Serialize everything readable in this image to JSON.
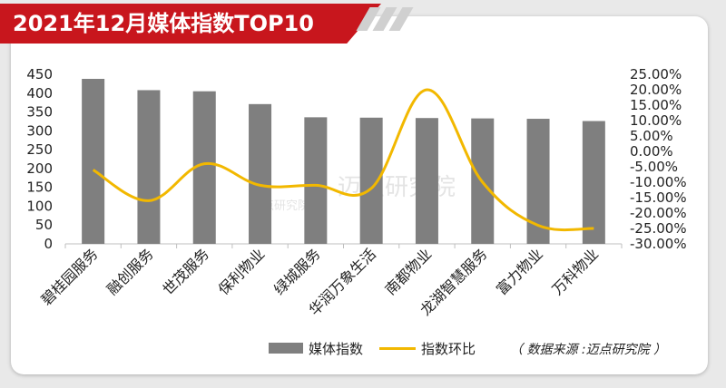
{
  "header": {
    "title": "2021年12月媒体指数TOP10"
  },
  "watermark": {
    "text": "迈点研究院",
    "small_text": "迈点研究院"
  },
  "source_note": "（ 数据来源 :迈点研究院 ）",
  "colors": {
    "bar": "#7f7f7f",
    "line": "#f2b800",
    "banner": "#c8161d"
  },
  "chart_data": {
    "type": "bar",
    "categories": [
      "碧桂园服务",
      "融创服务",
      "世茂服务",
      "保利物业",
      "绿城服务",
      "华润万象生活",
      "南都物业",
      "龙湖智慧服务",
      "富力物业",
      "万科物业"
    ],
    "series": [
      {
        "name": "媒体指数",
        "type": "bar",
        "axis": "left",
        "values": [
          438,
          408,
          405,
          371,
          336,
          335,
          334,
          333,
          332,
          326
        ]
      },
      {
        "name": "指数环比",
        "type": "line",
        "axis": "right",
        "values": [
          -0.06,
          -0.16,
          -0.04,
          -0.11,
          -0.11,
          -0.12,
          0.2,
          -0.1,
          -0.24,
          -0.25
        ]
      }
    ],
    "left_axis": {
      "min": 0,
      "max": 450,
      "ticks": [
        "0",
        "50",
        "100",
        "150",
        "200",
        "250",
        "300",
        "350",
        "400",
        "450"
      ]
    },
    "right_axis": {
      "min": -0.3,
      "max": 0.25,
      "ticks": [
        "-30.00%",
        "-25.00%",
        "-20.00%",
        "-15.00%",
        "-10.00%",
        "-5.00%",
        "0.00%",
        "5.00%",
        "10.00%",
        "15.00%",
        "20.00%",
        "25.00%"
      ]
    },
    "legend": [
      "媒体指数",
      "指数环比"
    ],
    "legend_position": "bottom",
    "grid": false
  }
}
